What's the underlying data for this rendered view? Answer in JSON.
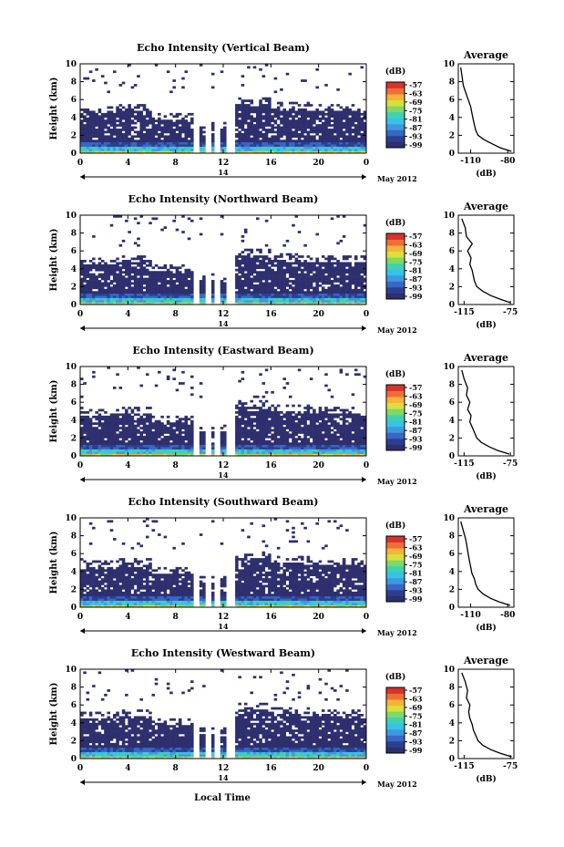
{
  "colors": {
    "colormap": [
      "#2e2f6e",
      "#2b3f8f",
      "#3a66c4",
      "#3e98de",
      "#35c3e8",
      "#3fd2b2",
      "#7fd86a",
      "#d8e03a",
      "#f6b23a",
      "#ee6f36",
      "#d9322c"
    ],
    "profile_line": "#000000",
    "background": "#ffffff"
  },
  "shared": {
    "xlabel": "Local Time",
    "ylabel": "Height (km)",
    "date_day": "14",
    "date_month": "May 2012",
    "colorbar_unit": "(dB)",
    "colorbar_ticks": [
      "-57",
      "-63",
      "-69",
      "-75",
      "-81",
      "-87",
      "-93",
      "-99"
    ],
    "profile_title": "Average",
    "profile_xlabel": "(dB)"
  },
  "chart_data": [
    {
      "type": "heatmap",
      "title": "Echo Intensity (Vertical Beam)",
      "x_ticks": [
        "0",
        "4",
        "8",
        "12",
        "16",
        "20",
        "0"
      ],
      "y_ticks": [
        "0",
        "2",
        "4",
        "6",
        "8",
        "10"
      ],
      "xlim": [
        0,
        24
      ],
      "ylim": [
        0,
        10
      ],
      "clim": [
        -99,
        -57
      ],
      "profile": {
        "type": "line",
        "x_ticks": [
          "-110",
          "-80"
        ],
        "xlim": [
          -120,
          -75
        ],
        "ylim": [
          0,
          10
        ],
        "x": [
          -77,
          -86,
          -92,
          -99,
          -104,
          -106,
          -107,
          -108,
          -109,
          -110,
          -112,
          -114,
          -116,
          -117,
          -118
        ],
        "y": [
          0.2,
          0.6,
          1.0,
          1.5,
          2.0,
          2.6,
          3.2,
          3.8,
          4.5,
          5.2,
          6.0,
          6.8,
          7.6,
          8.6,
          9.6
        ]
      }
    },
    {
      "type": "heatmap",
      "title": "Echo Intensity (Northward Beam)",
      "x_ticks": [
        "0",
        "4",
        "8",
        "12",
        "16",
        "20",
        "0"
      ],
      "y_ticks": [
        "0",
        "2",
        "4",
        "6",
        "8",
        "10"
      ],
      "xlim": [
        0,
        24
      ],
      "ylim": [
        0,
        10
      ],
      "clim": [
        -99,
        -57
      ],
      "profile": {
        "type": "line",
        "x_ticks": [
          "-115",
          "-75"
        ],
        "xlim": [
          -120,
          -72
        ],
        "ylim": [
          0,
          10
        ],
        "x": [
          -75,
          -84,
          -92,
          -99,
          -104,
          -106,
          -107,
          -108,
          -110,
          -109,
          -112,
          -108,
          -113,
          -114,
          -117
        ],
        "y": [
          0.2,
          0.6,
          1.0,
          1.5,
          2.0,
          2.6,
          3.2,
          3.8,
          4.5,
          5.2,
          6.0,
          6.8,
          7.6,
          8.6,
          9.6
        ]
      }
    },
    {
      "type": "heatmap",
      "title": "Echo Intensity (Eastward Beam)",
      "x_ticks": [
        "0",
        "4",
        "8",
        "12",
        "16",
        "20",
        "0"
      ],
      "y_ticks": [
        "0",
        "2",
        "4",
        "6",
        "8",
        "10"
      ],
      "xlim": [
        0,
        24
      ],
      "ylim": [
        0,
        10
      ],
      "clim": [
        -99,
        -57
      ],
      "profile": {
        "type": "line",
        "x_ticks": [
          "-115",
          "-75"
        ],
        "xlim": [
          -120,
          -72
        ],
        "ylim": [
          0,
          10
        ],
        "x": [
          -76,
          -86,
          -93,
          -100,
          -104,
          -106,
          -108,
          -110,
          -109,
          -112,
          -110,
          -113,
          -112,
          -115,
          -117
        ],
        "y": [
          0.2,
          0.6,
          1.0,
          1.5,
          2.0,
          2.6,
          3.2,
          3.8,
          4.5,
          5.2,
          6.0,
          6.8,
          7.6,
          8.6,
          9.6
        ]
      }
    },
    {
      "type": "heatmap",
      "title": "Echo Intensity (Southward Beam)",
      "x_ticks": [
        "0",
        "4",
        "8",
        "12",
        "16",
        "20",
        "0"
      ],
      "y_ticks": [
        "0",
        "2",
        "4",
        "6",
        "8",
        "10"
      ],
      "xlim": [
        0,
        24
      ],
      "ylim": [
        0,
        10
      ],
      "clim": [
        -99,
        -57
      ],
      "profile": {
        "type": "line",
        "x_ticks": [
          "-110",
          "-80"
        ],
        "xlim": [
          -120,
          -75
        ],
        "ylim": [
          0,
          10
        ],
        "x": [
          -78,
          -87,
          -94,
          -100,
          -104,
          -106,
          -107,
          -109,
          -110,
          -111,
          -112,
          -113,
          -114,
          -116,
          -118
        ],
        "y": [
          0.2,
          0.6,
          1.0,
          1.5,
          2.0,
          2.6,
          3.2,
          3.8,
          4.5,
          5.2,
          6.0,
          6.8,
          7.6,
          8.6,
          9.6
        ]
      }
    },
    {
      "type": "heatmap",
      "title": "Echo Intensity (Westward Beam)",
      "x_ticks": [
        "0",
        "4",
        "8",
        "12",
        "16",
        "20",
        "0"
      ],
      "y_ticks": [
        "0",
        "2",
        "4",
        "6",
        "8",
        "10"
      ],
      "xlim": [
        0,
        24
      ],
      "ylim": [
        0,
        10
      ],
      "clim": [
        -99,
        -57
      ],
      "profile": {
        "type": "line",
        "x_ticks": [
          "-115",
          "-75"
        ],
        "xlim": [
          -120,
          -72
        ],
        "ylim": [
          0,
          10
        ],
        "x": [
          -74,
          -84,
          -92,
          -99,
          -103,
          -105,
          -107,
          -108,
          -110,
          -111,
          -110,
          -113,
          -112,
          -114,
          -117
        ],
        "y": [
          0.2,
          0.6,
          1.0,
          1.5,
          2.0,
          2.6,
          3.2,
          3.8,
          4.5,
          5.2,
          6.0,
          6.8,
          7.6,
          8.6,
          9.6
        ]
      }
    }
  ]
}
